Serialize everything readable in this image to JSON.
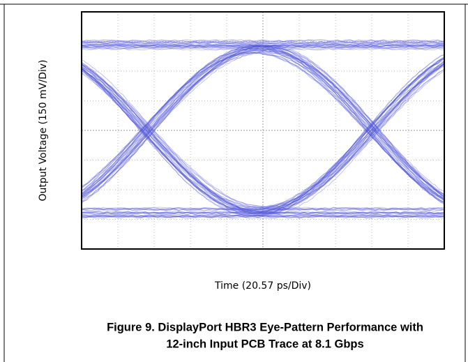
{
  "chart_data": {
    "type": "eye-diagram",
    "y_axis_label": "Output Voltage (150 mV/Div)",
    "x_axis_label": "Time (20.57 ps/Div)",
    "caption": [
      "Figure 9. DisplayPort HBR3 Eye-Pattern Performance with",
      "12-inch Input PCB Trace at 8.1 Gbps"
    ],
    "color": "#4b4fd8"
  }
}
